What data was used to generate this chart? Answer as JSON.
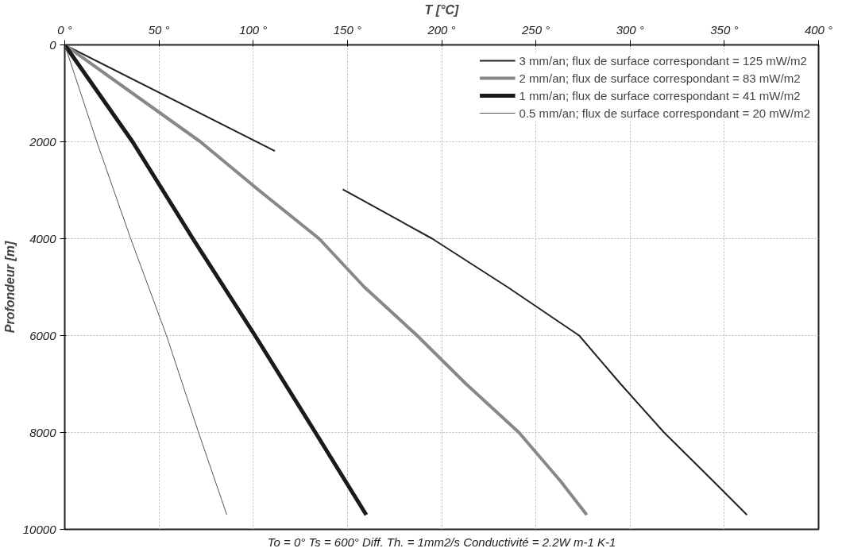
{
  "chart_data": {
    "type": "line",
    "xlabel": "T [°C]",
    "ylabel": "Profondeur [m]",
    "annotations": [
      "To = 0° Ts = 600° Diff. Th. = 1mm2/s Conductivité = 2.2W m-1 K-1"
    ],
    "xlim": [
      0,
      400
    ],
    "ylim": [
      10000,
      0
    ],
    "xticks": [
      {
        "value": 0,
        "label": "0 °"
      },
      {
        "value": 50,
        "label": "50 °"
      },
      {
        "value": 100,
        "label": "100 °"
      },
      {
        "value": 150,
        "label": "150 °"
      },
      {
        "value": 200,
        "label": "200 °"
      },
      {
        "value": 250,
        "label": "250 °"
      },
      {
        "value": 300,
        "label": "300 °"
      },
      {
        "value": 350,
        "label": "350 °"
      },
      {
        "value": 400,
        "label": "400 °"
      }
    ],
    "yticks": [
      0,
      2000,
      4000,
      6000,
      8000,
      10000
    ],
    "grid": true,
    "legend": "top right",
    "marker": "none",
    "line_style": "solid",
    "series": [
      {
        "name": "3 mm/an; flux de surface correspondant = 125 mW/m2",
        "color": "#222222",
        "x": [
          0,
          111.5,
          130,
          147.5,
          195,
          235,
          273,
          295,
          318,
          344,
          362
        ],
        "values": [
          0,
          2190,
          null,
          2980,
          4000,
          5000,
          6000,
          7000,
          8000,
          9000,
          9700
        ]
      },
      {
        "name": "2 mm/an; flux de surface correspondant = 83 mW/m2",
        "color": "#888888",
        "x": [
          0,
          36,
          72,
          103,
          135,
          159,
          187,
          213,
          241,
          263,
          277
        ],
        "values": [
          0,
          1000,
          2000,
          3000,
          4000,
          5000,
          6000,
          7000,
          8000,
          9000,
          9700
        ]
      },
      {
        "name": "1 mm/an; flux de surface correspondant = 41 mW/m2",
        "color": "#1a1a1a",
        "x": [
          0,
          36,
          68,
          101,
          133,
          160
        ],
        "values": [
          0,
          2000,
          4000,
          6000,
          8000,
          9700
        ]
      },
      {
        "name": "0.5 mm/an; flux de surface correspondant = 20 mW/m2",
        "color": "#555555",
        "x": [
          0,
          17,
          35,
          54,
          71,
          86
        ],
        "values": [
          0,
          2000,
          4000,
          6000,
          8000,
          9700
        ]
      }
    ]
  }
}
